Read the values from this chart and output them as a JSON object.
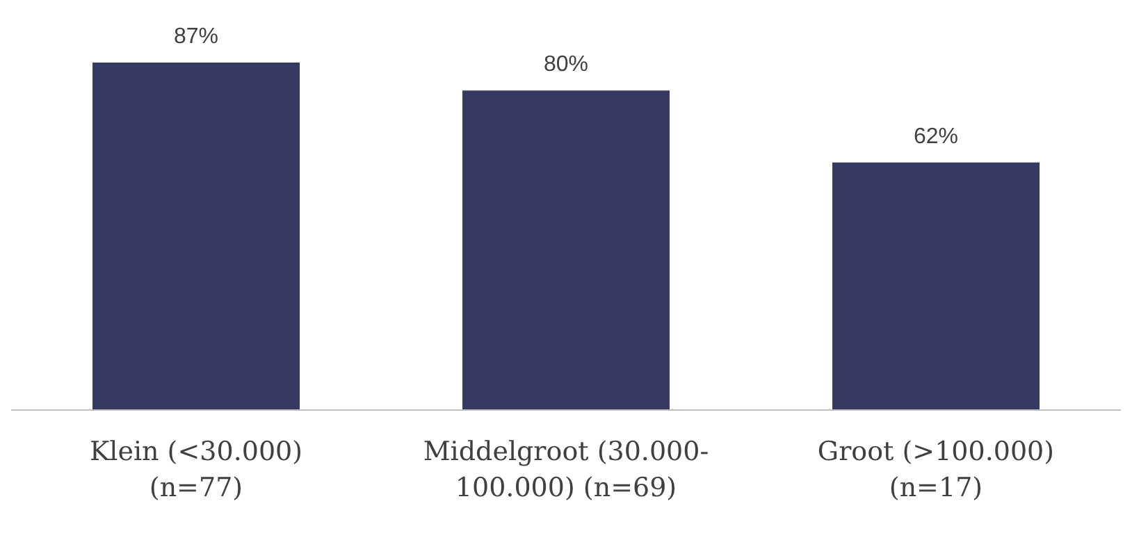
{
  "chart_data": {
    "type": "bar",
    "categories": [
      "Klein (<30.000) (n=77)",
      "Middelgroot (30.000-100.000) (n=69)",
      "Groot (>100.000) (n=17)"
    ],
    "values": [
      87,
      80,
      62
    ],
    "color": "#363a63",
    "value_labels": [
      "87%",
      "80%",
      "62%"
    ],
    "tick_labels": "x",
    "grid": false,
    "legend": false
  }
}
